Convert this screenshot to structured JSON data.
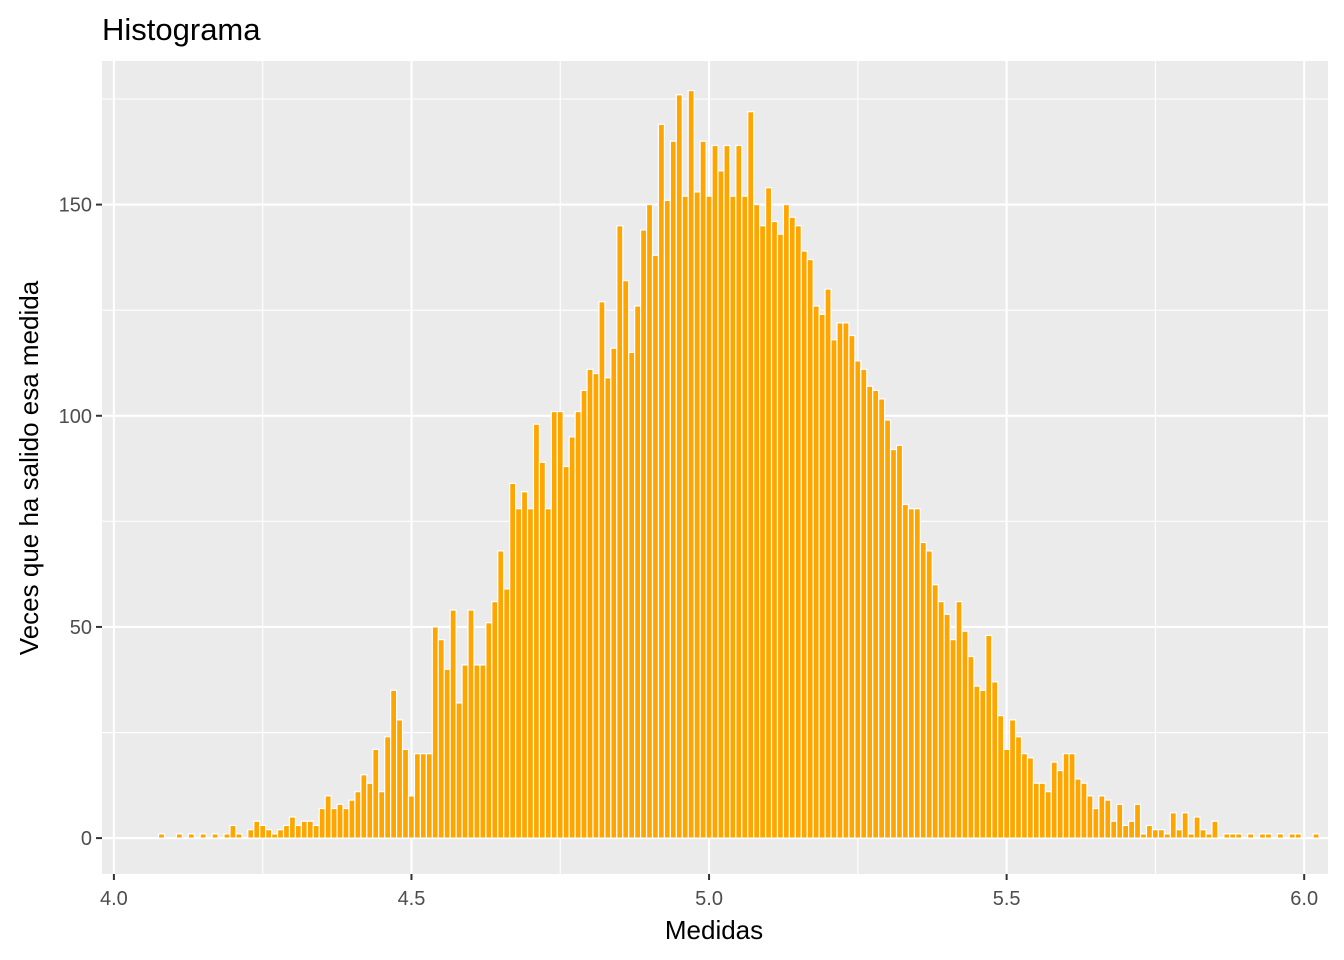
{
  "chart_data": {
    "type": "bar",
    "title": "Histograma",
    "xlabel": "Medidas",
    "ylabel": "Veces que ha salido esa medida",
    "xlim": [
      3.98,
      6.04
    ],
    "ylim": [
      -8.5,
      184
    ],
    "x_ticks": [
      4.0,
      4.5,
      5.0,
      5.5,
      6.0
    ],
    "x_tick_labels": [
      "4.0",
      "4.5",
      "5.0",
      "5.5",
      "6.0"
    ],
    "y_ticks": [
      0,
      50,
      100,
      150
    ],
    "y_tick_labels": [
      "0",
      "50",
      "100",
      "150"
    ],
    "bin_width": 0.01,
    "bar_color": "#FFA500",
    "outline_color": "#FFFFFF",
    "panel_background": "#EBEBEB",
    "grid": true,
    "bins": [
      [
        4.08,
        1
      ],
      [
        4.11,
        1
      ],
      [
        4.13,
        1
      ],
      [
        4.15,
        1
      ],
      [
        4.17,
        1
      ],
      [
        4.19,
        1
      ],
      [
        4.2,
        3
      ],
      [
        4.21,
        1
      ],
      [
        4.23,
        2
      ],
      [
        4.24,
        4
      ],
      [
        4.25,
        3
      ],
      [
        4.26,
        2
      ],
      [
        4.27,
        1
      ],
      [
        4.28,
        2
      ],
      [
        4.29,
        3
      ],
      [
        4.3,
        5
      ],
      [
        4.31,
        3
      ],
      [
        4.32,
        4
      ],
      [
        4.33,
        4
      ],
      [
        4.34,
        3
      ],
      [
        4.35,
        7
      ],
      [
        4.36,
        10
      ],
      [
        4.37,
        7
      ],
      [
        4.38,
        8
      ],
      [
        4.39,
        7
      ],
      [
        4.4,
        9
      ],
      [
        4.41,
        11
      ],
      [
        4.42,
        15
      ],
      [
        4.43,
        13
      ],
      [
        4.44,
        21
      ],
      [
        4.45,
        11
      ],
      [
        4.46,
        24
      ],
      [
        4.47,
        35
      ],
      [
        4.48,
        28
      ],
      [
        4.49,
        21
      ],
      [
        4.5,
        10
      ],
      [
        4.51,
        20
      ],
      [
        4.52,
        20
      ],
      [
        4.53,
        20
      ],
      [
        4.54,
        50
      ],
      [
        4.55,
        47
      ],
      [
        4.56,
        40
      ],
      [
        4.57,
        54
      ],
      [
        4.58,
        32
      ],
      [
        4.59,
        41
      ],
      [
        4.6,
        54
      ],
      [
        4.61,
        41
      ],
      [
        4.62,
        41
      ],
      [
        4.63,
        51
      ],
      [
        4.64,
        56
      ],
      [
        4.65,
        68
      ],
      [
        4.66,
        59
      ],
      [
        4.67,
        84
      ],
      [
        4.68,
        78
      ],
      [
        4.69,
        82
      ],
      [
        4.7,
        78
      ],
      [
        4.71,
        98
      ],
      [
        4.72,
        89
      ],
      [
        4.73,
        78
      ],
      [
        4.74,
        101
      ],
      [
        4.75,
        101
      ],
      [
        4.76,
        88
      ],
      [
        4.77,
        95
      ],
      [
        4.78,
        101
      ],
      [
        4.79,
        106
      ],
      [
        4.8,
        111
      ],
      [
        4.81,
        110
      ],
      [
        4.82,
        127
      ],
      [
        4.83,
        109
      ],
      [
        4.84,
        116
      ],
      [
        4.85,
        145
      ],
      [
        4.86,
        132
      ],
      [
        4.87,
        115
      ],
      [
        4.88,
        126
      ],
      [
        4.89,
        144
      ],
      [
        4.9,
        150
      ],
      [
        4.91,
        138
      ],
      [
        4.92,
        169
      ],
      [
        4.93,
        151
      ],
      [
        4.94,
        165
      ],
      [
        4.95,
        176
      ],
      [
        4.96,
        152
      ],
      [
        4.97,
        177
      ],
      [
        4.98,
        153
      ],
      [
        4.99,
        165
      ],
      [
        5.0,
        152
      ],
      [
        5.01,
        164
      ],
      [
        5.02,
        158
      ],
      [
        5.03,
        164
      ],
      [
        5.04,
        152
      ],
      [
        5.05,
        164
      ],
      [
        5.06,
        152
      ],
      [
        5.07,
        172
      ],
      [
        5.08,
        150
      ],
      [
        5.09,
        145
      ],
      [
        5.1,
        154
      ],
      [
        5.11,
        146
      ],
      [
        5.12,
        143
      ],
      [
        5.13,
        150
      ],
      [
        5.14,
        147
      ],
      [
        5.15,
        145
      ],
      [
        5.16,
        139
      ],
      [
        5.17,
        137
      ],
      [
        5.18,
        126
      ],
      [
        5.19,
        124
      ],
      [
        5.2,
        130
      ],
      [
        5.21,
        118
      ],
      [
        5.22,
        122
      ],
      [
        5.23,
        122
      ],
      [
        5.24,
        119
      ],
      [
        5.25,
        113
      ],
      [
        5.26,
        111
      ],
      [
        5.27,
        107
      ],
      [
        5.28,
        106
      ],
      [
        5.29,
        104
      ],
      [
        5.3,
        99
      ],
      [
        5.31,
        92
      ],
      [
        5.32,
        93
      ],
      [
        5.33,
        79
      ],
      [
        5.34,
        78
      ],
      [
        5.35,
        78
      ],
      [
        5.36,
        70
      ],
      [
        5.37,
        68
      ],
      [
        5.38,
        60
      ],
      [
        5.39,
        56
      ],
      [
        5.4,
        53
      ],
      [
        5.41,
        47
      ],
      [
        5.42,
        56
      ],
      [
        5.43,
        49
      ],
      [
        5.44,
        43
      ],
      [
        5.45,
        36
      ],
      [
        5.46,
        35
      ],
      [
        5.47,
        48
      ],
      [
        5.48,
        37
      ],
      [
        5.49,
        29
      ],
      [
        5.5,
        21
      ],
      [
        5.51,
        28
      ],
      [
        5.52,
        24
      ],
      [
        5.53,
        20
      ],
      [
        5.54,
        19
      ],
      [
        5.55,
        13
      ],
      [
        5.56,
        13
      ],
      [
        5.57,
        11
      ],
      [
        5.58,
        18
      ],
      [
        5.59,
        16
      ],
      [
        5.6,
        20
      ],
      [
        5.61,
        20
      ],
      [
        5.62,
        14
      ],
      [
        5.63,
        13
      ],
      [
        5.64,
        10
      ],
      [
        5.65,
        7
      ],
      [
        5.66,
        10
      ],
      [
        5.67,
        9
      ],
      [
        5.68,
        4
      ],
      [
        5.69,
        8
      ],
      [
        5.7,
        3
      ],
      [
        5.71,
        4
      ],
      [
        5.72,
        8
      ],
      [
        5.73,
        1
      ],
      [
        5.74,
        3
      ],
      [
        5.75,
        2
      ],
      [
        5.76,
        2
      ],
      [
        5.77,
        1
      ],
      [
        5.78,
        6
      ],
      [
        5.79,
        2
      ],
      [
        5.8,
        6
      ],
      [
        5.81,
        1
      ],
      [
        5.82,
        5
      ],
      [
        5.83,
        2
      ],
      [
        5.84,
        1
      ],
      [
        5.85,
        4
      ],
      [
        5.87,
        1
      ],
      [
        5.88,
        1
      ],
      [
        5.89,
        1
      ],
      [
        5.91,
        1
      ],
      [
        5.93,
        1
      ],
      [
        5.94,
        1
      ],
      [
        5.96,
        1
      ],
      [
        5.98,
        1
      ],
      [
        5.99,
        1
      ],
      [
        6.02,
        1
      ]
    ]
  }
}
